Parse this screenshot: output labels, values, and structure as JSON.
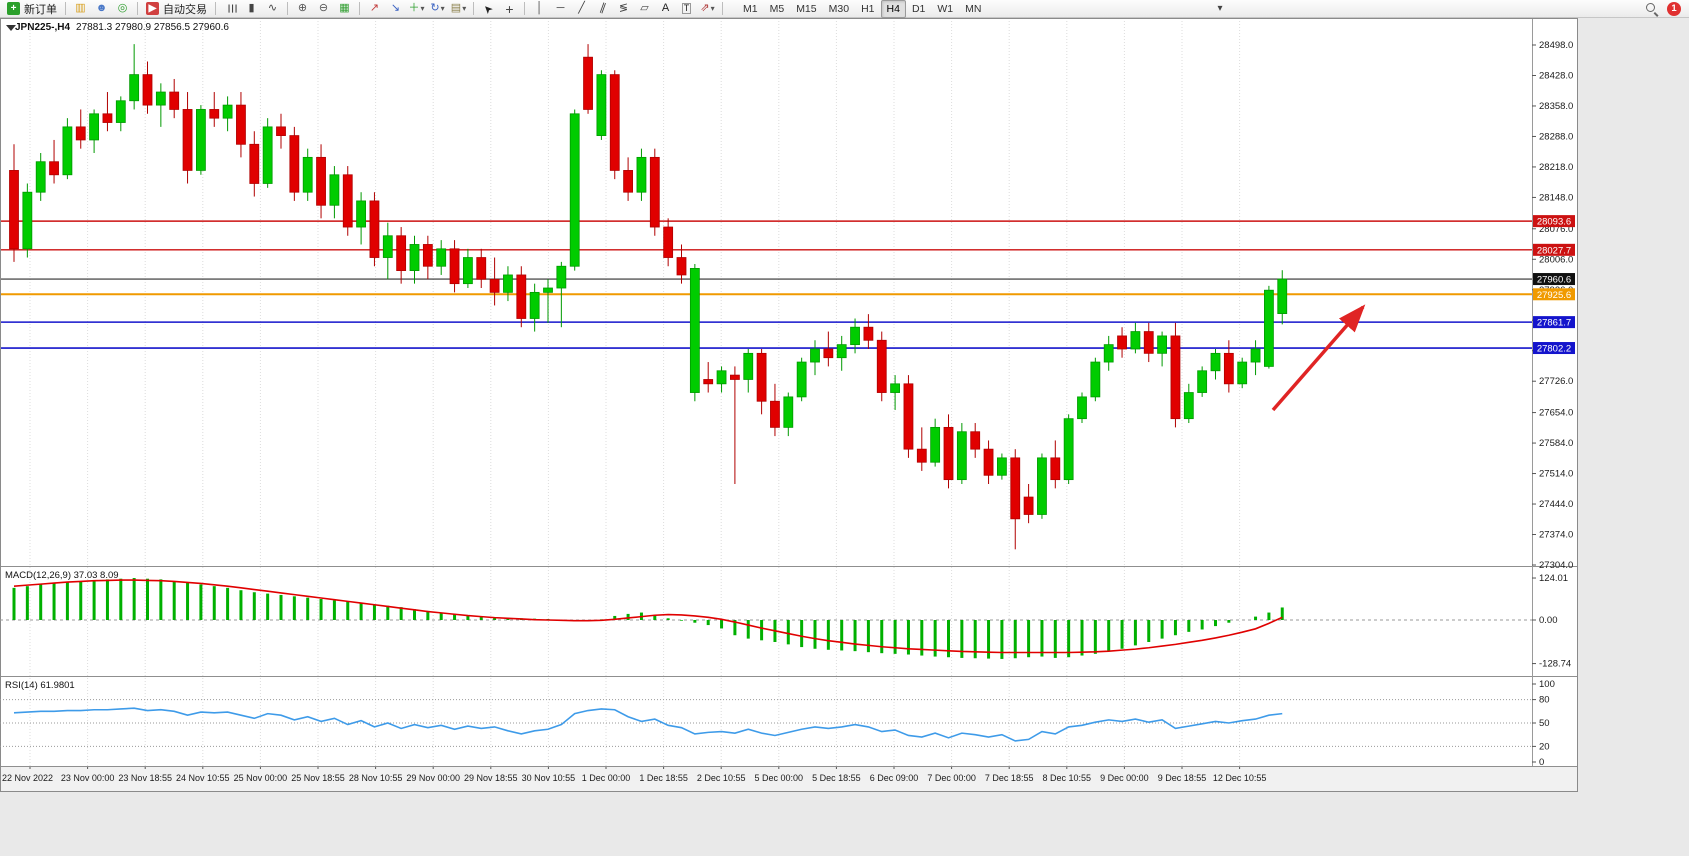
{
  "toolbar": {
    "new_order": "新订单",
    "auto_trading": "自动交易",
    "timeframes": [
      "M1",
      "M5",
      "M15",
      "M30",
      "H1",
      "H4",
      "D1",
      "W1",
      "MN"
    ],
    "active_timeframe": "H4",
    "notification_count": "1",
    "items": [
      {
        "t": "btn",
        "name": "new-order-button",
        "icon": "new-order-icon",
        "g": "+",
        "gc": "#ffffff",
        "gbg": "#2ca02c",
        "labelKey": "new_order"
      },
      {
        "t": "sep"
      },
      {
        "t": "ic",
        "name": "market-watch-icon",
        "g": "▥",
        "c": "#d79f1e"
      },
      {
        "t": "ic",
        "name": "profiles-icon",
        "g": "☻",
        "c": "#4a78c8"
      },
      {
        "t": "ic",
        "name": "navigator-icon",
        "g": "◎",
        "c": "#2e9e2e"
      },
      {
        "t": "sep"
      },
      {
        "t": "btn",
        "name": "auto-trading-button",
        "icon": "auto-trading-icon",
        "g": "▶",
        "gc": "#ffffff",
        "gbg": "#d04040",
        "labelKey": "auto_trading"
      },
      {
        "t": "sep"
      },
      {
        "t": "ic",
        "name": "bar-chart-icon",
        "g": "☰",
        "c": "#444444",
        "rot": 90
      },
      {
        "t": "ic",
        "name": "candlestick-chart-icon",
        "g": "▮",
        "c": "#444444"
      },
      {
        "t": "ic",
        "name": "line-chart-icon",
        "g": "∿",
        "c": "#444444"
      },
      {
        "t": "sep"
      },
      {
        "t": "ic",
        "name": "zoom-in-icon",
        "g": "⊕",
        "c": "#555555"
      },
      {
        "t": "ic",
        "name": "zoom-out-icon",
        "g": "⊖",
        "c": "#555555"
      },
      {
        "t": "ic",
        "name": "tile-windows-icon",
        "g": "▦",
        "c": "#2e9e2e"
      },
      {
        "t": "sep"
      },
      {
        "t": "ic",
        "name": "indicators-icon",
        "g": "↗",
        "c": "#c23a3a"
      },
      {
        "t": "ic",
        "name": "indicator-windows-icon",
        "g": "↘",
        "c": "#3a62c2"
      },
      {
        "t": "ic",
        "name": "add-indicator-icon",
        "g": "＋",
        "c": "#2e9e2e",
        "caret": true
      },
      {
        "t": "ic",
        "name": "periodicity-icon",
        "g": "↻",
        "c": "#3a62c2",
        "caret": true
      },
      {
        "t": "ic",
        "name": "templates-icon",
        "g": "▤",
        "c": "#8a7f4a",
        "caret": true
      },
      {
        "t": "sep"
      },
      {
        "t": "ic",
        "name": "cursor-icon",
        "g": "➤",
        "c": "#222222",
        "rot": -135
      },
      {
        "t": "ic",
        "name": "crosshair-icon",
        "g": "+",
        "c": "#444444",
        "big": true
      },
      {
        "t": "sep"
      },
      {
        "t": "ic",
        "name": "vertical-line-icon",
        "g": "│",
        "c": "#444444"
      },
      {
        "t": "ic",
        "name": "horizontal-line-icon",
        "g": "─",
        "c": "#444444"
      },
      {
        "t": "ic",
        "name": "trendline-icon",
        "g": "╱",
        "c": "#444444"
      },
      {
        "t": "ic",
        "name": "equidistant-channel-icon",
        "g": "∥",
        "c": "#444444",
        "rot": 20
      },
      {
        "t": "ic",
        "name": "fibonacci-icon",
        "g": "≶",
        "c": "#444444"
      },
      {
        "t": "ic",
        "name": "shapes-icon",
        "g": "▱",
        "c": "#444444"
      },
      {
        "t": "ic",
        "name": "text-icon",
        "g": "A",
        "c": "#222222"
      },
      {
        "t": "ic",
        "name": "text-label-icon",
        "g": "T",
        "c": "#222222",
        "boxed": true
      },
      {
        "t": "ic",
        "name": "arrows-tool-icon",
        "g": "⇗",
        "c": "#b03a3a",
        "caret": true
      },
      {
        "t": "sep"
      }
    ]
  },
  "chart": {
    "symbol_period": "JPN225-,H4",
    "ohlc_readout": "27881.3 27980.9 27856.5 27960.6",
    "macd_label": "MACD(12,26,9) 37.03 8.09",
    "rsi_label": "RSI(14) 61.9801",
    "price_axis_labels": [
      "28498.0",
      "28428.0",
      "28358.0",
      "28288.0",
      "28218.0",
      "28148.0",
      "28076.0",
      "28006.0",
      "27936.0",
      "27866.0",
      "27796.0",
      "27726.0",
      "27654.0",
      "27584.0",
      "27514.0",
      "27444.0",
      "27374.0",
      "27304.0"
    ],
    "time_axis_labels": [
      "22 Nov 2022",
      "23 Nov 00:00",
      "23 Nov 18:55",
      "24 Nov 10:55",
      "25 Nov 00:00",
      "25 Nov 18:55",
      "28 Nov 10:55",
      "29 Nov 00:00",
      "29 Nov 18:55",
      "30 Nov 10:55",
      "1 Dec 00:00",
      "1 Dec 18:55",
      "2 Dec 10:55",
      "5 Dec 00:00",
      "5 Dec 18:55",
      "6 Dec 09:00",
      "7 Dec 00:00",
      "7 Dec 18:55",
      "8 Dec 10:55",
      "9 Dec 00:00",
      "9 Dec 18:55",
      "12 Dec 10:55"
    ],
    "hlines": [
      {
        "name": "resistance-line-1",
        "price": 28093.6,
        "label": "28093.6",
        "color": "#cc1111",
        "badge_color": "#cc1111",
        "width": 1.4
      },
      {
        "name": "resistance-line-2",
        "price": 28027.7,
        "label": "28027.7",
        "color": "#cc1111",
        "badge_color": "#cc1111",
        "width": 1.4
      },
      {
        "name": "current-price-line",
        "price": 27960.6,
        "label": "27960.6",
        "color": "#2f2f2f",
        "badge_color": "#111111",
        "width": 1.2
      },
      {
        "name": "pivot-line-orange",
        "price": 27925.6,
        "label": "27925.6",
        "color": "#f09a00",
        "badge_color": "#f09a00",
        "width": 2
      },
      {
        "name": "support-line-1",
        "price": 27861.7,
        "label": "27861.7",
        "color": "#1414cc",
        "badge_color": "#1414cc",
        "width": 1.6
      },
      {
        "name": "support-line-2",
        "price": 27802.2,
        "label": "27802.2",
        "color": "#1414cc",
        "badge_color": "#1414cc",
        "width": 1.6
      }
    ]
  },
  "chart_data": {
    "type": "candlestick",
    "symbol": "JPN225-",
    "timeframe": "H4",
    "title": "JPN225-,H4 27881.3 27980.9 27856.5 27960.6",
    "y_axis": {
      "min": 27304,
      "max": 28498
    },
    "colors": {
      "bull": "#00cc00",
      "bear": "#e00000",
      "macd_hist": "#00b000",
      "macd_signal": "#e00000",
      "rsi": "#3e9be9"
    },
    "ohlc": [
      [
        28210,
        28270,
        28000,
        28030
      ],
      [
        28030,
        28180,
        28010,
        28160
      ],
      [
        28160,
        28250,
        28140,
        28230
      ],
      [
        28230,
        28280,
        28180,
        28200
      ],
      [
        28200,
        28330,
        28190,
        28310
      ],
      [
        28310,
        28350,
        28260,
        28280
      ],
      [
        28280,
        28350,
        28250,
        28340
      ],
      [
        28340,
        28390,
        28300,
        28320
      ],
      [
        28320,
        28380,
        28300,
        28370
      ],
      [
        28370,
        28500,
        28350,
        28430
      ],
      [
        28430,
        28460,
        28340,
        28360
      ],
      [
        28360,
        28410,
        28310,
        28390
      ],
      [
        28390,
        28420,
        28330,
        28350
      ],
      [
        28350,
        28390,
        28180,
        28210
      ],
      [
        28210,
        28360,
        28200,
        28350
      ],
      [
        28350,
        28390,
        28310,
        28330
      ],
      [
        28330,
        28380,
        28300,
        28360
      ],
      [
        28360,
        28390,
        28240,
        28270
      ],
      [
        28270,
        28300,
        28150,
        28180
      ],
      [
        28180,
        28330,
        28170,
        28310
      ],
      [
        28310,
        28340,
        28260,
        28290
      ],
      [
        28290,
        28310,
        28140,
        28160
      ],
      [
        28160,
        28260,
        28140,
        28240
      ],
      [
        28240,
        28270,
        28100,
        28130
      ],
      [
        28130,
        28220,
        28100,
        28200
      ],
      [
        28200,
        28220,
        28060,
        28080
      ],
      [
        28080,
        28160,
        28040,
        28140
      ],
      [
        28140,
        28160,
        27990,
        28010
      ],
      [
        28010,
        28090,
        27960,
        28060
      ],
      [
        28060,
        28080,
        27950,
        27980
      ],
      [
        27980,
        28060,
        27950,
        28040
      ],
      [
        28040,
        28060,
        27960,
        27990
      ],
      [
        27990,
        28050,
        27970,
        28030
      ],
      [
        28030,
        28050,
        27930,
        27950
      ],
      [
        27950,
        28030,
        27940,
        28010
      ],
      [
        28010,
        28030,
        27940,
        27960
      ],
      [
        27960,
        28010,
        27900,
        27930
      ],
      [
        27930,
        27990,
        27910,
        27970
      ],
      [
        27970,
        27990,
        27850,
        27870
      ],
      [
        27870,
        27950,
        27840,
        27930
      ],
      [
        27930,
        27960,
        27860,
        27940
      ],
      [
        27940,
        28000,
        27850,
        27990
      ],
      [
        27990,
        28350,
        27980,
        28340
      ],
      [
        28470,
        28500,
        28340,
        28350
      ],
      [
        28290,
        28440,
        28280,
        28430
      ],
      [
        28430,
        28440,
        28190,
        28210
      ],
      [
        28210,
        28240,
        28140,
        28160
      ],
      [
        28160,
        28260,
        28140,
        28240
      ],
      [
        28240,
        28260,
        28060,
        28080
      ],
      [
        28080,
        28100,
        27990,
        28010
      ],
      [
        28010,
        28040,
        27950,
        27970
      ],
      [
        27700,
        27995,
        27680,
        27985
      ],
      [
        27730,
        27770,
        27700,
        27720
      ],
      [
        27720,
        27760,
        27700,
        27750
      ],
      [
        27740,
        27760,
        27490,
        27730
      ],
      [
        27730,
        27800,
        27700,
        27790
      ],
      [
        27790,
        27800,
        27650,
        27680
      ],
      [
        27680,
        27720,
        27600,
        27620
      ],
      [
        27620,
        27700,
        27600,
        27690
      ],
      [
        27690,
        27780,
        27680,
        27770
      ],
      [
        27770,
        27820,
        27740,
        27800
      ],
      [
        27800,
        27840,
        27760,
        27780
      ],
      [
        27780,
        27830,
        27750,
        27810
      ],
      [
        27810,
        27870,
        27790,
        27850
      ],
      [
        27850,
        27880,
        27800,
        27820
      ],
      [
        27820,
        27840,
        27680,
        27700
      ],
      [
        27700,
        27740,
        27660,
        27720
      ],
      [
        27720,
        27740,
        27550,
        27570
      ],
      [
        27570,
        27620,
        27520,
        27540
      ],
      [
        27540,
        27640,
        27530,
        27620
      ],
      [
        27620,
        27650,
        27480,
        27500
      ],
      [
        27500,
        27630,
        27490,
        27610
      ],
      [
        27610,
        27630,
        27550,
        27570
      ],
      [
        27570,
        27590,
        27490,
        27510
      ],
      [
        27510,
        27560,
        27500,
        27550
      ],
      [
        27550,
        27570,
        27340,
        27410
      ],
      [
        27460,
        27490,
        27400,
        27420
      ],
      [
        27420,
        27560,
        27410,
        27550
      ],
      [
        27550,
        27590,
        27480,
        27500
      ],
      [
        27500,
        27650,
        27490,
        27640
      ],
      [
        27640,
        27700,
        27630,
        27690
      ],
      [
        27690,
        27780,
        27680,
        27770
      ],
      [
        27770,
        27830,
        27750,
        27810
      ],
      [
        27830,
        27850,
        27780,
        27800
      ],
      [
        27800,
        27860,
        27790,
        27840
      ],
      [
        27840,
        27860,
        27770,
        27790
      ],
      [
        27790,
        27840,
        27760,
        27830
      ],
      [
        27830,
        27860,
        27620,
        27640
      ],
      [
        27640,
        27720,
        27630,
        27700
      ],
      [
        27700,
        27760,
        27690,
        27750
      ],
      [
        27750,
        27800,
        27730,
        27790
      ],
      [
        27790,
        27820,
        27700,
        27720
      ],
      [
        27720,
        27780,
        27710,
        27770
      ],
      [
        27770,
        27820,
        27740,
        27800
      ],
      [
        27760,
        27945,
        27755,
        27935
      ],
      [
        27881.3,
        27980.9,
        27856.5,
        27960.6
      ]
    ],
    "indicators": {
      "macd": {
        "params": "12,26,9",
        "current": "37.03 8.09",
        "axis_labels": [
          "124.01",
          "0.00",
          "-128.74"
        ],
        "histogram": [
          95,
          100,
          105,
          108,
          112,
          115,
          118,
          120,
          122,
          124,
          122,
          120,
          115,
          110,
          105,
          100,
          95,
          88,
          82,
          78,
          74,
          70,
          66,
          62,
          58,
          54,
          50,
          46,
          42,
          38,
          32,
          27,
          22,
          18,
          14,
          11,
          8,
          6,
          5,
          4,
          3,
          -2,
          -4,
          -3,
          2,
          12,
          18,
          22,
          15,
          5,
          -2,
          -8,
          -15,
          -25,
          -45,
          -55,
          -60,
          -65,
          -72,
          -80,
          -85,
          -88,
          -90,
          -92,
          -95,
          -98,
          -100,
          -102,
          -105,
          -108,
          -110,
          -112,
          -113,
          -114,
          -115,
          -113,
          -110,
          -108,
          -112,
          -110,
          -105,
          -100,
          -92,
          -85,
          -75,
          -65,
          -55,
          -45,
          -35,
          -28,
          -18,
          -8,
          0,
          10,
          22,
          37
        ],
        "signal": [
          100,
          103,
          106,
          109,
          112,
          114,
          116,
          117,
          118,
          118,
          117,
          116,
          114,
          111,
          108,
          104,
          100,
          95,
          90,
          85,
          80,
          75,
          70,
          65,
          60,
          55,
          50,
          45,
          40,
          35,
          30,
          25,
          21,
          17,
          13,
          10,
          7,
          5,
          3,
          1,
          0,
          -1,
          -2,
          -2,
          -1,
          2,
          6,
          10,
          14,
          16,
          15,
          12,
          8,
          2,
          -6,
          -15,
          -24,
          -32,
          -40,
          -48,
          -55,
          -61,
          -66,
          -71,
          -75,
          -79,
          -82,
          -85,
          -87,
          -89,
          -91,
          -93,
          -94,
          -95,
          -96,
          -96,
          -96,
          -96,
          -96,
          -96,
          -95,
          -94,
          -92,
          -89,
          -86,
          -82,
          -77,
          -72,
          -66,
          -60,
          -53,
          -45,
          -36,
          -26,
          -10,
          8
        ]
      },
      "rsi": {
        "params": "14",
        "current": "61.9801",
        "axis_labels": [
          "100",
          "80",
          "50",
          "20",
          "0"
        ],
        "levels": [
          80,
          50,
          20
        ],
        "values": [
          63,
          64,
          65,
          65,
          66,
          66,
          67,
          67,
          68,
          69,
          66,
          67,
          65,
          60,
          64,
          63,
          64,
          60,
          56,
          62,
          60,
          54,
          58,
          52,
          56,
          48,
          53,
          45,
          50,
          43,
          48,
          44,
          47,
          42,
          46,
          43,
          45,
          40,
          36,
          40,
          42,
          48,
          62,
          66,
          68,
          67,
          58,
          52,
          55,
          47,
          44,
          36,
          38,
          39,
          37,
          42,
          37,
          34,
          38,
          42,
          45,
          43,
          45,
          48,
          45,
          39,
          41,
          34,
          32,
          37,
          31,
          37,
          35,
          32,
          35,
          27,
          29,
          39,
          36,
          45,
          47,
          51,
          54,
          52,
          55,
          51,
          54,
          43,
          46,
          49,
          52,
          50,
          53,
          55,
          60,
          62
        ]
      }
    }
  },
  "annotations": {
    "arrow": {
      "color": "#e02424",
      "from": [
        1273,
        392
      ],
      "to": [
        1363,
        289
      ]
    }
  }
}
